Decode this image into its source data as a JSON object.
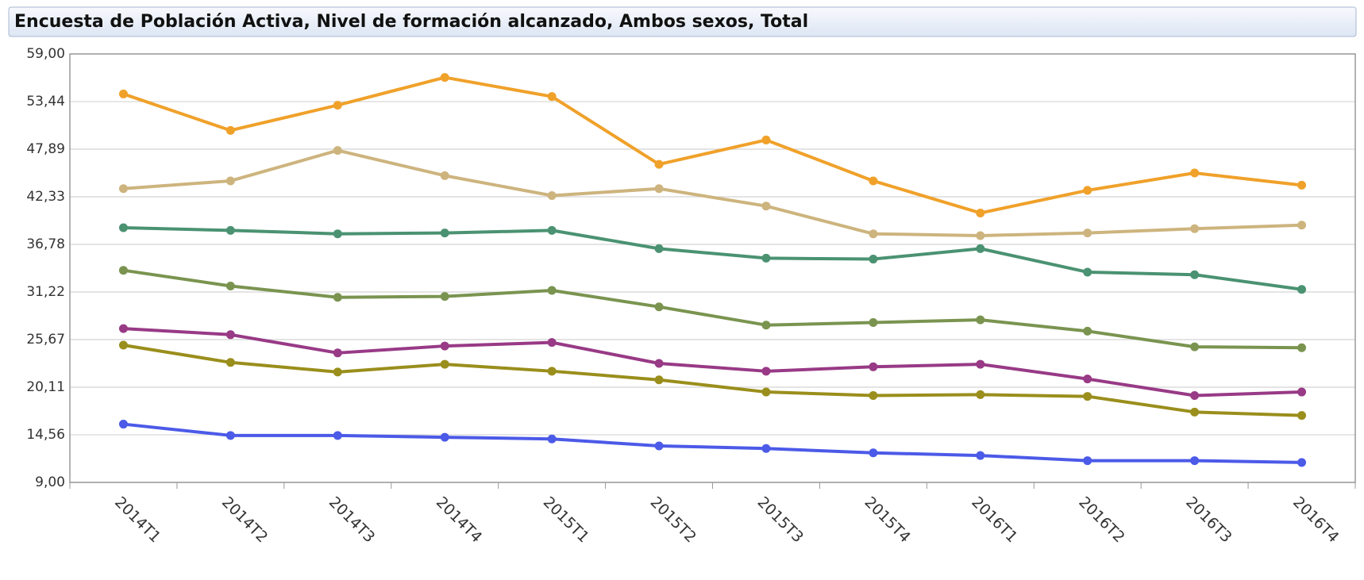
{
  "chart_data": {
    "type": "line",
    "title": "Encuesta de Población Activa, Nivel de formación alcanzado, Ambos sexos, Total",
    "categories": [
      "2014T1",
      "2014T2",
      "2014T3",
      "2014T4",
      "2015T1",
      "2015T2",
      "2015T3",
      "2015T4",
      "2016T1",
      "2016T2",
      "2016T3",
      "2016T4"
    ],
    "series": [
      {
        "color": "#f0a12a",
        "values": [
          54.33,
          50.08,
          53.02,
          56.26,
          54.03,
          46.12,
          48.96,
          44.19,
          40.44,
          43.08,
          45.11,
          43.69
        ]
      },
      {
        "color": "#cdb47e",
        "values": [
          43.28,
          44.19,
          47.74,
          44.8,
          42.47,
          43.28,
          41.25,
          38.01,
          37.8,
          38.11,
          38.61,
          39.02
        ]
      },
      {
        "color": "#4a9272",
        "values": [
          38.72,
          38.41,
          38.01,
          38.11,
          38.41,
          36.28,
          35.17,
          35.06,
          36.28,
          33.54,
          33.24,
          31.52
        ]
      },
      {
        "color": "#7a9450",
        "values": [
          33.75,
          31.92,
          30.6,
          30.7,
          31.41,
          29.49,
          27.36,
          27.66,
          27.97,
          26.65,
          24.82,
          24.72
        ]
      },
      {
        "color": "#983a86",
        "values": [
          26.95,
          26.24,
          24.11,
          24.92,
          25.33,
          22.89,
          21.98,
          22.49,
          22.79,
          21.07,
          19.14,
          19.55
        ]
      },
      {
        "color": "#9a8e1c",
        "values": [
          25.02,
          23.0,
          21.88,
          22.79,
          21.98,
          20.97,
          19.55,
          19.14,
          19.24,
          19.04,
          17.21,
          16.81
        ]
      },
      {
        "color": "#4c5ae8",
        "values": [
          15.8,
          14.48,
          14.48,
          14.27,
          14.07,
          13.26,
          12.96,
          12.45,
          12.14,
          11.54,
          11.54,
          11.33
        ]
      }
    ],
    "ylim": [
      9,
      59
    ],
    "yticks": [
      {
        "value": 9,
        "label": "9,00"
      },
      {
        "value": 14.56,
        "label": "14,56"
      },
      {
        "value": 20.11,
        "label": "20,11"
      },
      {
        "value": 25.67,
        "label": "25,67"
      },
      {
        "value": 31.22,
        "label": "31,22"
      },
      {
        "value": 36.78,
        "label": "36,78"
      },
      {
        "value": 42.33,
        "label": "42,33"
      },
      {
        "value": 47.89,
        "label": "47,89"
      },
      {
        "value": 53.44,
        "label": "53,44"
      },
      {
        "value": 59,
        "label": "59,00"
      }
    ],
    "grid": true
  }
}
